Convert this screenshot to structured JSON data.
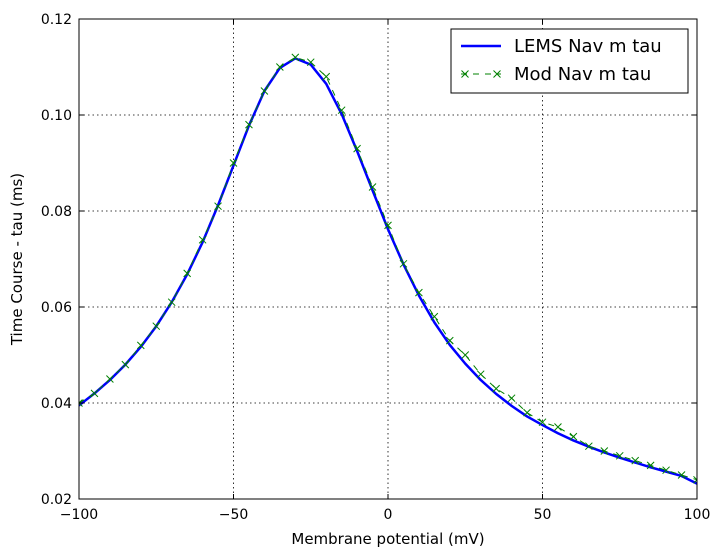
{
  "chart_data": {
    "type": "line",
    "xlabel": "Membrane potential (mV)",
    "ylabel": "Time Course - tau (ms)",
    "xlim": [
      -100,
      100
    ],
    "ylim": [
      0.02,
      0.12
    ],
    "xticks": [
      -100,
      -50,
      0,
      50,
      100
    ],
    "yticks": [
      0.02,
      0.04,
      0.06,
      0.08,
      0.1,
      0.12
    ],
    "xtick_labels": [
      "−100",
      "−50",
      "0",
      "50",
      "100"
    ],
    "ytick_labels": [
      "0.02",
      "0.04",
      "0.06",
      "0.08",
      "0.10",
      "0.12"
    ],
    "grid": true,
    "legend_position": "top-right",
    "series": [
      {
        "name": "LEMS Nav m tau",
        "style": "solid-line",
        "color": "#0000ff",
        "x": [
          -100,
          -95,
          -90,
          -85,
          -80,
          -75,
          -70,
          -65,
          -60,
          -55,
          -50,
          -45,
          -40,
          -35,
          -30,
          -25,
          -20,
          -15,
          -10,
          -5,
          0,
          5,
          10,
          15,
          20,
          25,
          30,
          35,
          40,
          45,
          50,
          55,
          60,
          65,
          70,
          75,
          80,
          85,
          90,
          95,
          100
        ],
        "y": [
          0.0395,
          0.042,
          0.0448,
          0.048,
          0.0517,
          0.056,
          0.061,
          0.0668,
          0.0735,
          0.0812,
          0.0895,
          0.0978,
          0.105,
          0.1098,
          0.1118,
          0.1105,
          0.1065,
          0.1002,
          0.0925,
          0.0843,
          0.0762,
          0.0689,
          0.0624,
          0.0568,
          0.0521,
          0.0482,
          0.0448,
          0.0419,
          0.0394,
          0.0372,
          0.0354,
          0.0337,
          0.0322,
          0.0309,
          0.0297,
          0.0286,
          0.0276,
          0.0266,
          0.0257,
          0.0248,
          0.0232
        ]
      },
      {
        "name": "Mod Nav m tau",
        "style": "dashed-x-markers",
        "color": "#008000",
        "x": [
          -100,
          -95,
          -90,
          -85,
          -80,
          -75,
          -70,
          -65,
          -60,
          -55,
          -50,
          -45,
          -40,
          -35,
          -30,
          -25,
          -20,
          -15,
          -10,
          -5,
          0,
          5,
          10,
          15,
          20,
          25,
          30,
          35,
          40,
          45,
          50,
          55,
          60,
          65,
          70,
          75,
          80,
          85,
          90,
          95,
          100
        ],
        "y": [
          0.04,
          0.042,
          0.045,
          0.048,
          0.052,
          0.056,
          0.061,
          0.067,
          0.074,
          0.081,
          0.09,
          0.098,
          0.105,
          0.11,
          0.112,
          0.111,
          0.108,
          0.101,
          0.093,
          0.085,
          0.077,
          0.069,
          0.063,
          0.058,
          0.053,
          0.05,
          0.046,
          0.043,
          0.041,
          0.038,
          0.036,
          0.035,
          0.033,
          0.031,
          0.03,
          0.029,
          0.028,
          0.027,
          0.026,
          0.025,
          0.024
        ]
      }
    ]
  }
}
